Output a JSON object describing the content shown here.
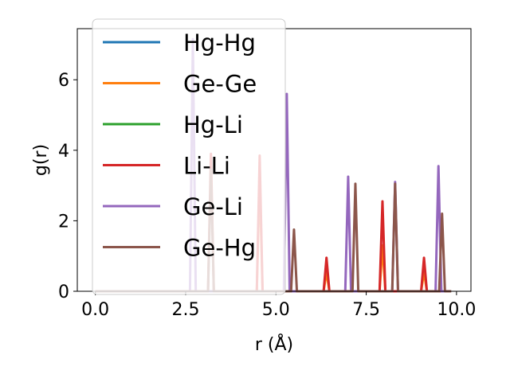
{
  "chart_data": {
    "type": "line",
    "xlabel": "r (Å)",
    "ylabel": "g(r)",
    "xlim": [
      -0.5,
      10.4
    ],
    "ylim": [
      0,
      7.45
    ],
    "x_ticks": [
      0.0,
      2.5,
      5.0,
      7.5,
      10.0
    ],
    "x_tick_labels": [
      "0.0",
      "2.5",
      "5.0",
      "7.5",
      "10.0"
    ],
    "y_ticks": [
      0,
      2,
      4,
      6
    ],
    "y_tick_labels": [
      "0",
      "2",
      "4",
      "6"
    ],
    "grid": false,
    "legend_position": "top-left",
    "x_range": [
      0,
      9.85
    ],
    "peak_half_width": 0.08,
    "series": [
      {
        "name": "Hg-Hg",
        "color": "#1f77b4",
        "peaks": []
      },
      {
        "name": "Ge-Ge",
        "color": "#ff7f0e",
        "peaks": [
          [
            4.55,
            3.25
          ],
          [
            6.4,
            0.55
          ],
          [
            7.95,
            1.3
          ],
          [
            9.1,
            0.55
          ]
        ]
      },
      {
        "name": "Hg-Li",
        "color": "#2ca02c",
        "peaks": []
      },
      {
        "name": "Li-Li",
        "color": "#d62728",
        "peaks": [
          [
            3.2,
            3.9
          ],
          [
            4.55,
            3.85
          ],
          [
            6.4,
            0.95
          ],
          [
            7.95,
            2.55
          ],
          [
            9.1,
            0.95
          ]
        ]
      },
      {
        "name": "Ge-Li",
        "color": "#9467bd",
        "peaks": [
          [
            2.7,
            7.15
          ],
          [
            5.3,
            5.6
          ],
          [
            7.0,
            3.25
          ],
          [
            8.3,
            3.1
          ],
          [
            9.5,
            3.55
          ]
        ]
      },
      {
        "name": "Ge-Hg",
        "color": "#8c564b",
        "peaks": [
          [
            3.2,
            3.45
          ],
          [
            5.5,
            1.75
          ],
          [
            7.2,
            3.05
          ],
          [
            8.3,
            3.05
          ],
          [
            9.6,
            2.2
          ]
        ]
      }
    ]
  }
}
